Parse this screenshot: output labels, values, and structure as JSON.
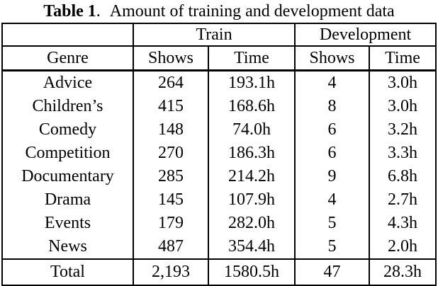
{
  "caption": {
    "label": "Table 1",
    "period": ".",
    "text": "Amount of training and development data"
  },
  "colors": {
    "background": "#ffffff",
    "border": "#000000",
    "text": "#000000"
  },
  "table": {
    "group_headers": {
      "train": "Train",
      "development": "Development"
    },
    "column_headers": {
      "genre": "Genre",
      "train_shows": "Shows",
      "train_time": "Time",
      "dev_shows": "Shows",
      "dev_time": "Time"
    },
    "rows": [
      {
        "genre": "Advice",
        "train_shows": "264",
        "train_time": "193.1h",
        "dev_shows": "4",
        "dev_time": "3.0h"
      },
      {
        "genre": "Children’s",
        "train_shows": "415",
        "train_time": "168.6h",
        "dev_shows": "8",
        "dev_time": "3.0h"
      },
      {
        "genre": "Comedy",
        "train_shows": "148",
        "train_time": "74.0h",
        "dev_shows": "6",
        "dev_time": "3.2h"
      },
      {
        "genre": "Competition",
        "train_shows": "270",
        "train_time": "186.3h",
        "dev_shows": "6",
        "dev_time": "3.3h"
      },
      {
        "genre": "Documentary",
        "train_shows": "285",
        "train_time": "214.2h",
        "dev_shows": "9",
        "dev_time": "6.8h"
      },
      {
        "genre": "Drama",
        "train_shows": "145",
        "train_time": "107.9h",
        "dev_shows": "4",
        "dev_time": "2.7h"
      },
      {
        "genre": "Events",
        "train_shows": "179",
        "train_time": "282.0h",
        "dev_shows": "5",
        "dev_time": "4.3h"
      },
      {
        "genre": "News",
        "train_shows": "487",
        "train_time": "354.4h",
        "dev_shows": "5",
        "dev_time": "2.0h"
      }
    ],
    "total": {
      "genre": "Total",
      "train_shows": "2,193",
      "train_time": "1580.5h",
      "dev_shows": "47",
      "dev_time": "28.3h"
    }
  }
}
